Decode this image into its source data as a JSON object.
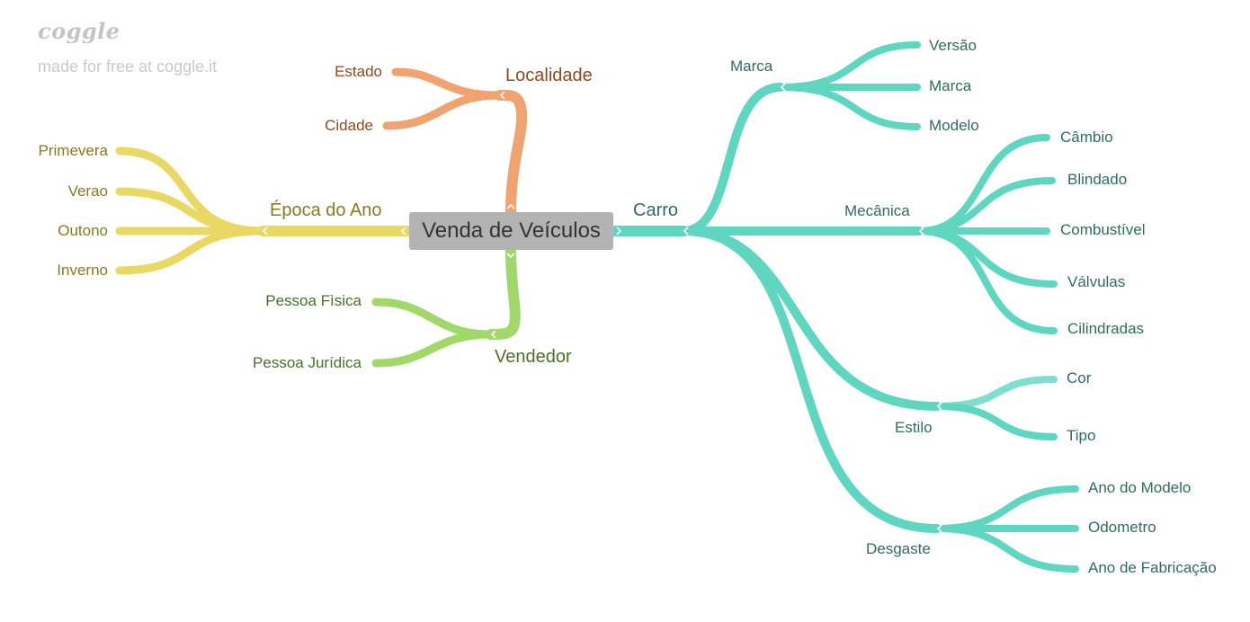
{
  "brand": {
    "logo": "coggle",
    "tagline": "made for free at coggle.it"
  },
  "colors": {
    "center": "#b3b3b3",
    "teal": "#5fd6bf",
    "teal_text": "#2e6d60",
    "orange": "#f0a26f",
    "orange_text": "#8a4b25",
    "yellow": "#ead864",
    "yellow_text": "#8a7a22",
    "green": "#a0d86a",
    "green_text": "#4d6e2a"
  },
  "center": {
    "label": "Venda de Veículos"
  },
  "branches": {
    "localidade": {
      "label": "Localidade",
      "children": [
        "Estado",
        "Cidade"
      ]
    },
    "epoca": {
      "label": "Época do Ano",
      "children": [
        "Primevera",
        "Verao",
        "Outono",
        "Inverno"
      ]
    },
    "vendedor": {
      "label": "Vendedor",
      "children": [
        "Pessoa Fìsica",
        "Pessoa Jurídica"
      ]
    },
    "carro": {
      "label": "Carro",
      "marca": {
        "label": "Marca",
        "children": [
          "Versão",
          "Marca",
          "Modelo"
        ]
      },
      "mecanica": {
        "label": "Mecânica",
        "children": [
          "Câmbio",
          "Blindado",
          "Combustível",
          "Válvulas",
          "Cilindradas"
        ]
      },
      "estilo": {
        "label": "Estilo",
        "children": [
          "Cor",
          "Tipo"
        ]
      },
      "desgaste": {
        "label": "Desgaste",
        "children": [
          "Ano do Modelo",
          "Odometro",
          "Ano de Fabricação"
        ]
      }
    }
  }
}
